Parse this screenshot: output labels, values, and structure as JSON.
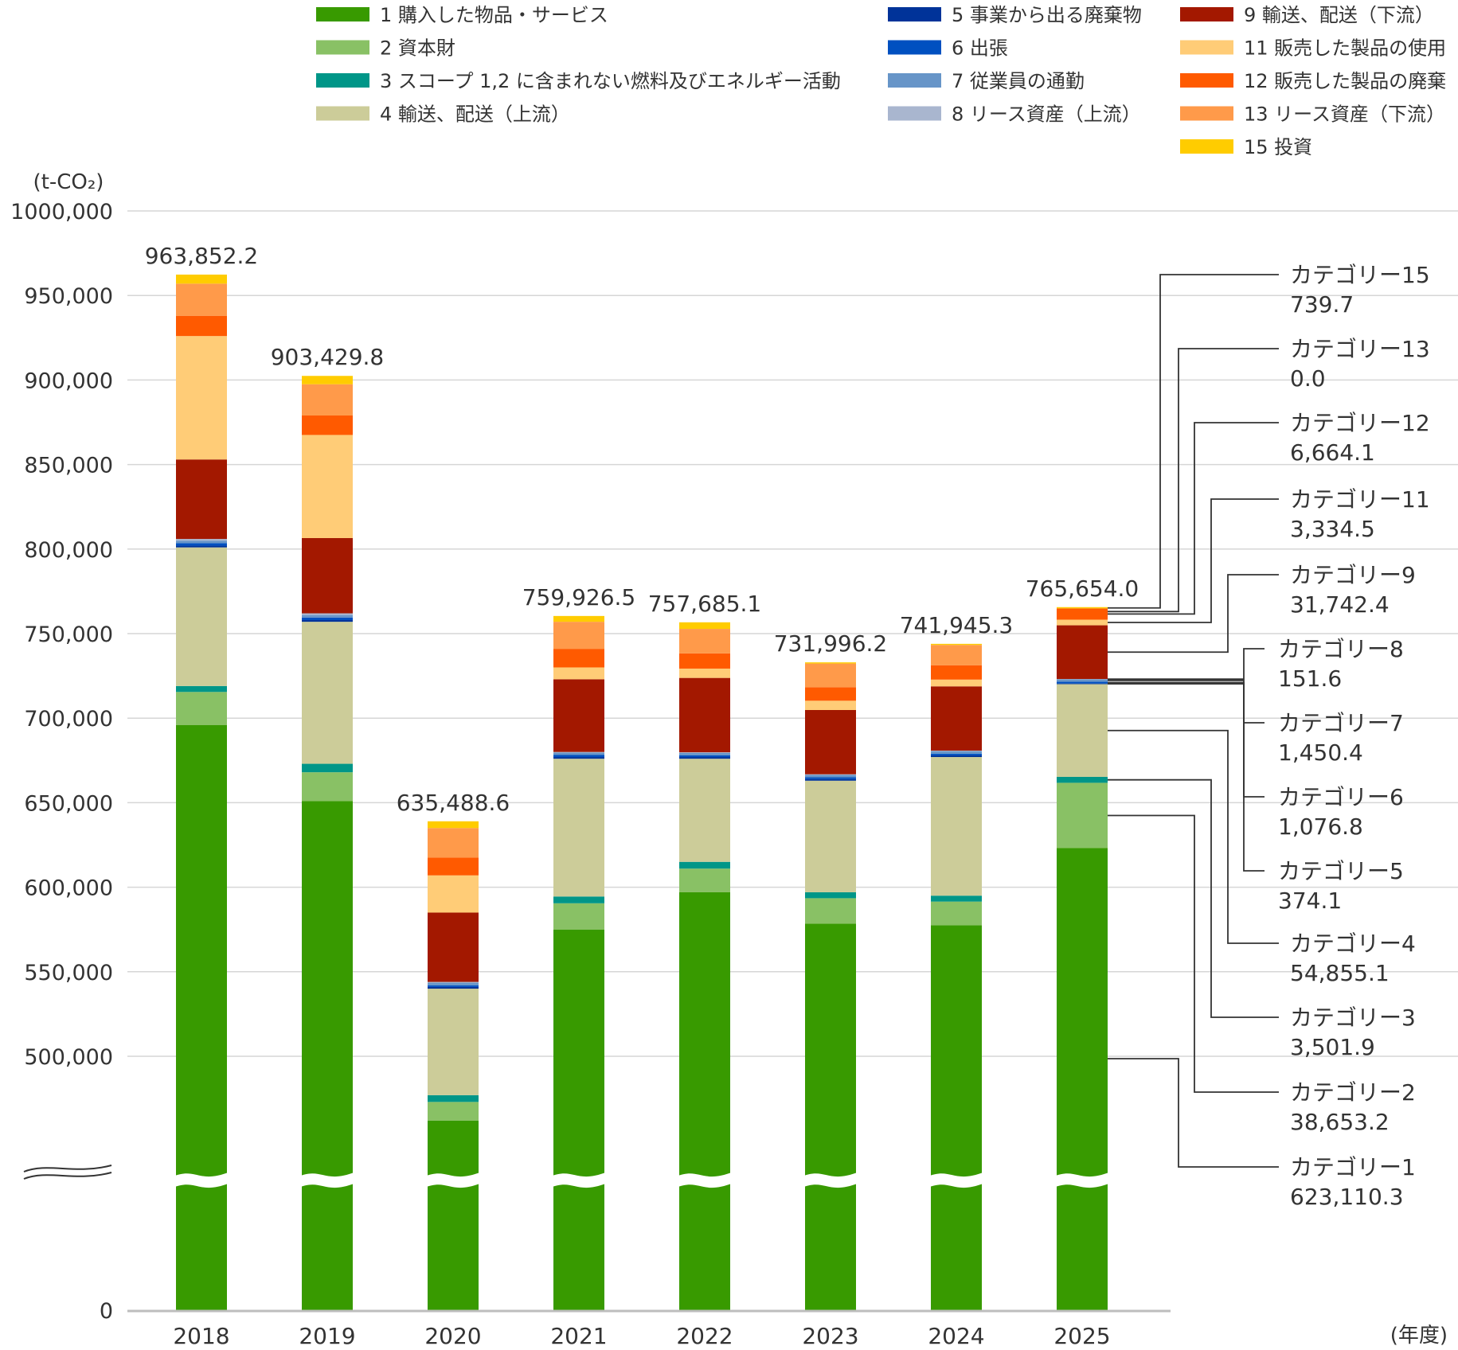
{
  "chart_data": {
    "type": "bar",
    "stacked": true,
    "y_unit": "(t-CO₂)",
    "x_unit": "(年度)",
    "ylim": [
      0,
      1000000
    ],
    "axis_break": true,
    "y_ticks": [
      {
        "value": 1000000,
        "label": "1000,000"
      },
      {
        "value": 950000,
        "label": "950,000"
      },
      {
        "value": 900000,
        "label": "900,000"
      },
      {
        "value": 850000,
        "label": "850,000"
      },
      {
        "value": 800000,
        "label": "800,000"
      },
      {
        "value": 750000,
        "label": "750,000"
      },
      {
        "value": 700000,
        "label": "700,000"
      },
      {
        "value": 650000,
        "label": "650,000"
      },
      {
        "value": 600000,
        "label": "600,000"
      },
      {
        "value": 550000,
        "label": "550,000"
      },
      {
        "value": 500000,
        "label": "500,000"
      },
      {
        "value": 0,
        "label": "0"
      }
    ],
    "categories": [
      "2018",
      "2019",
      "2020",
      "2021",
      "2022",
      "2023",
      "2024",
      "2025"
    ],
    "totals": [
      "963,852.2",
      "903,429.8",
      "635,488.6",
      "759,926.5",
      "757,685.1",
      "731,996.2",
      "741,945.3",
      "765,654.0"
    ],
    "series": [
      {
        "key": "c1",
        "name": "1 購入した物品・サービス",
        "color": "#389a00",
        "values": [
          696000,
          651000,
          462000,
          575000,
          597000,
          578500,
          577500,
          623110.3
        ]
      },
      {
        "key": "c2",
        "name": "2 資本財",
        "color": "#89c165",
        "values": [
          19500,
          17000,
          11000,
          15500,
          14000,
          15000,
          14000,
          38653.2
        ]
      },
      {
        "key": "c3",
        "name": "3 スコープ 1,2 に含まれない燃料及びエネルギー活動",
        "color": "#009688",
        "values": [
          3500,
          5000,
          4000,
          4000,
          4000,
          3500,
          3500,
          3501.9
        ]
      },
      {
        "key": "c4",
        "name": "4 輸送、配送（上流）",
        "color": "#cccc99",
        "values": [
          82000,
          84000,
          63000,
          81500,
          61000,
          66000,
          82000,
          54855.1
        ]
      },
      {
        "key": "c5",
        "name": "5 事業から出る廃棄物",
        "color": "#003399",
        "values": [
          1000,
          1000,
          1000,
          1000,
          1000,
          1000,
          1000,
          374.1
        ]
      },
      {
        "key": "c6",
        "name": "6 出張",
        "color": "#0050c0",
        "values": [
          1500,
          1500,
          1000,
          1200,
          1000,
          1000,
          1000,
          1076.8
        ]
      },
      {
        "key": "c7",
        "name": "7 従業員の通勤",
        "color": "#6795c8",
        "values": [
          1500,
          1500,
          1500,
          1500,
          1500,
          1500,
          1500,
          1450.4
        ]
      },
      {
        "key": "c8",
        "name": "8 リース資産（上流）",
        "color": "#a9b6cf",
        "values": [
          1000,
          1000,
          500,
          300,
          300,
          300,
          300,
          151.6
        ]
      },
      {
        "key": "c9",
        "name": "9 輸送、配送（下流）",
        "color": "#a31800",
        "values": [
          47000,
          44500,
          41000,
          43000,
          44000,
          38000,
          38000,
          31742.4
        ]
      },
      {
        "key": "c11",
        "name": "11 販売した製品の使用",
        "color": "#ffcc77",
        "values": [
          73000,
          61000,
          22000,
          7000,
          5500,
          5500,
          4000,
          3334.5
        ]
      },
      {
        "key": "c12",
        "name": "12 販売した製品の廃棄",
        "color": "#ff5a00",
        "values": [
          12000,
          11500,
          10500,
          11000,
          9000,
          8000,
          8500,
          6664.1
        ]
      },
      {
        "key": "c13",
        "name": "13 リース資産（下流）",
        "color": "#ff9a4a",
        "values": [
          19000,
          18500,
          17500,
          16000,
          14500,
          14000,
          12000,
          0.0
        ]
      },
      {
        "key": "c15",
        "name": "15 投資",
        "color": "#ffcc00",
        "values": [
          5352,
          4929,
          3989,
          3426,
          3885,
          696,
          645,
          739.7
        ]
      }
    ],
    "callouts": [
      {
        "series": "c15",
        "label": "カテゴリー15",
        "value": "739.7"
      },
      {
        "series": "c13",
        "label": "カテゴリー13",
        "value": "0.0"
      },
      {
        "series": "c12",
        "label": "カテゴリー12",
        "value": "6,664.1"
      },
      {
        "series": "c11",
        "label": "カテゴリー11",
        "value": "3,334.5"
      },
      {
        "series": "c9",
        "label": "カテゴリー9",
        "value": "31,742.4"
      },
      {
        "series": "c8",
        "label": "カテゴリー8",
        "value": "151.6"
      },
      {
        "series": "c7",
        "label": "カテゴリー7",
        "value": "1,450.4"
      },
      {
        "series": "c6",
        "label": "カテゴリー6",
        "value": "1,076.8"
      },
      {
        "series": "c5",
        "label": "カテゴリー5",
        "value": "374.1"
      },
      {
        "series": "c4",
        "label": "カテゴリー4",
        "value": "54,855.1"
      },
      {
        "series": "c3",
        "label": "カテゴリー3",
        "value": "3,501.9"
      },
      {
        "series": "c2",
        "label": "カテゴリー2",
        "value": "38,653.2"
      },
      {
        "series": "c1",
        "label": "カテゴリー1",
        "value": "623,110.3"
      }
    ]
  }
}
